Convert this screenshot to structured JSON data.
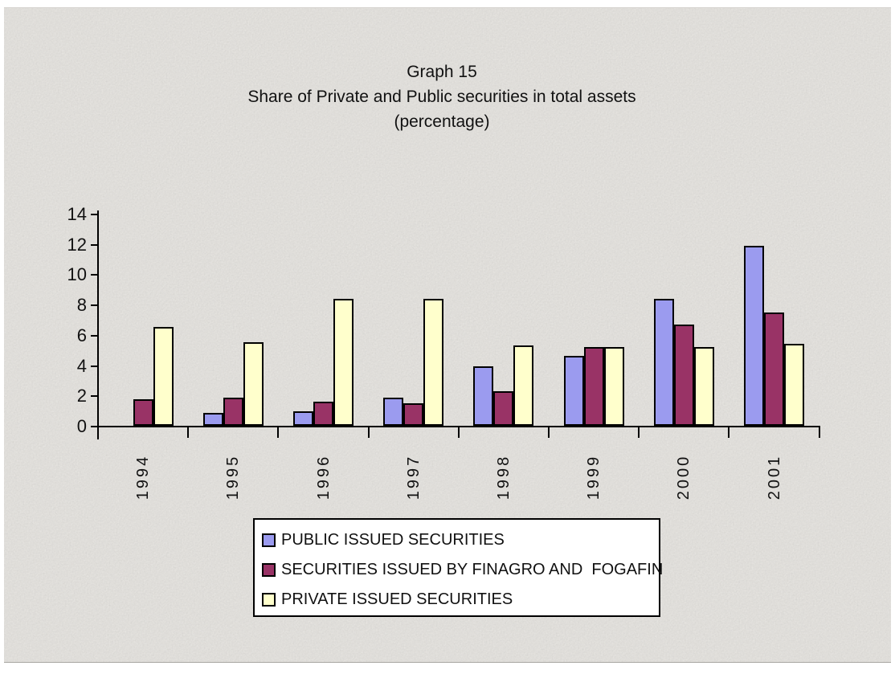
{
  "title": {
    "line1": "Graph 15",
    "line2": "Share of Private and Public securities in total assets",
    "line3": "(percentage)"
  },
  "chart_data": {
    "type": "bar",
    "categories": [
      "1994",
      "1995",
      "1996",
      "1997",
      "1998",
      "1999",
      "2000",
      "2001"
    ],
    "series": [
      {
        "name": "PUBLIC ISSUED SECURITIES",
        "color": "#9b9bef",
        "values": [
          0,
          0.85,
          0.95,
          1.85,
          3.9,
          4.6,
          8.4,
          11.9
        ]
      },
      {
        "name": "SECURITIES ISSUED BY FINAGRO AND  FOGAFIN",
        "color": "#993366",
        "values": [
          1.75,
          1.85,
          1.6,
          1.5,
          2.3,
          5.2,
          6.7,
          7.5
        ]
      },
      {
        "name": "PRIVATE ISSUED SECURITIES",
        "color": "#ffffcc",
        "values": [
          6.5,
          5.5,
          8.4,
          8.4,
          5.3,
          5.2,
          5.2,
          5.4
        ]
      }
    ],
    "title": "Graph 15 Share of Private and Public securities in total assets (percentage)",
    "xlabel": "",
    "ylabel": "",
    "ylim": [
      0,
      14
    ],
    "yticks": [
      0,
      2,
      4,
      6,
      8,
      10,
      12,
      14
    ],
    "grid": false,
    "legend_position": "bottom",
    "bar_border_color": "#000000",
    "axis_color": "#000000",
    "background_color": "#e9e7e3"
  }
}
